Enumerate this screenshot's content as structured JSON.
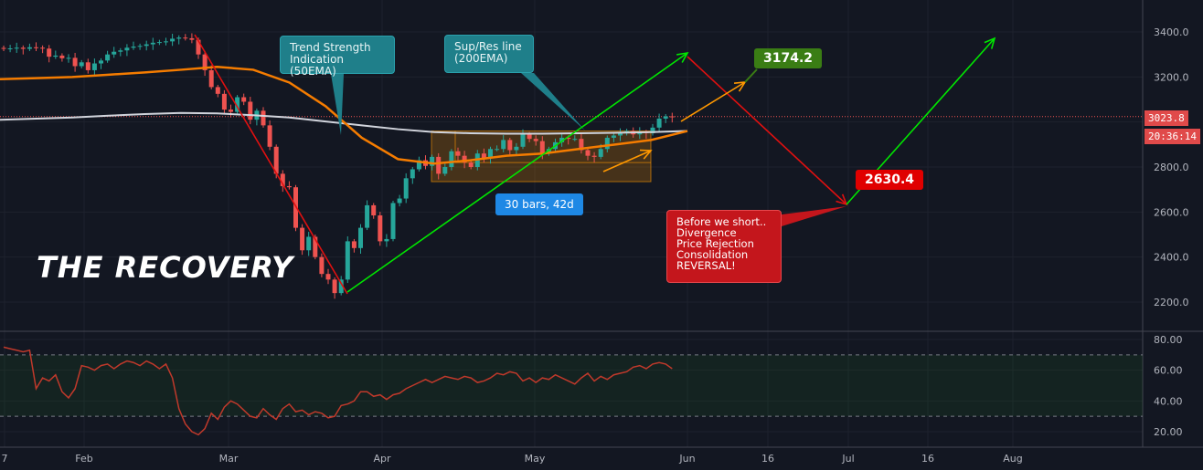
{
  "title_overlay": "THE RECOVERY",
  "annotations": {
    "trend_strength": "Trend Strength\nIndication (50EMA)",
    "sup_res": "Sup/Res line\n(200EMA)",
    "bars_range": "30 bars, 42d",
    "target_up": "3174.2",
    "target_down": "2630.4",
    "short_note": "Before we short..\nDivergence\nPrice Rejection\nConsolidation\nREVERSAL!"
  },
  "axis_tags": {
    "last_price": "3023.8",
    "countdown": "20:36:14"
  },
  "colors": {
    "up": "#26a69a",
    "down": "#ef5350",
    "ema50": "#f57c00",
    "ema200": "#d1d4dc",
    "rsi": "#c0392b",
    "green_arrow": "#00e600",
    "red_arrow": "#e01010",
    "orange_arrow": "#ff9800"
  },
  "chart_data": [
    {
      "type": "candlestick",
      "price_axis_ticks": [
        "3400.0",
        "3200.0",
        "3000.0",
        "2800.0",
        "2600.0",
        "2400.0",
        "2200.0"
      ],
      "price_axis_values": [
        3400,
        3200,
        3000,
        2800,
        2600,
        2400,
        2200
      ],
      "time_axis_ticks": [
        "7",
        "Feb",
        "Mar",
        "Apr",
        "May",
        "Jun",
        "16",
        "Jul",
        "16",
        "Aug"
      ],
      "ylim": [
        2120,
        3520
      ],
      "close_series": [
        3325,
        3327,
        3330,
        3325,
        3332,
        3330,
        3326,
        3290,
        3295,
        3283,
        3285,
        3248,
        3265,
        3230,
        3260,
        3273,
        3300,
        3312,
        3318,
        3330,
        3335,
        3338,
        3345,
        3352,
        3355,
        3358,
        3370,
        3375,
        3372,
        3365,
        3300,
        3230,
        3155,
        3125,
        3055,
        3045,
        3110,
        3090,
        3010,
        3050,
        2985,
        2890,
        2770,
        2715,
        2710,
        2530,
        2430,
        2490,
        2400,
        2325,
        2300,
        2240,
        2300,
        2470,
        2440,
        2530,
        2630,
        2585,
        2470,
        2480,
        2640,
        2660,
        2750,
        2790,
        2830,
        2805,
        2845,
        2770,
        2800,
        2870,
        2850,
        2820,
        2800,
        2860,
        2840,
        2880,
        2880,
        2920,
        2875,
        2890,
        2945,
        2925,
        2915,
        2860,
        2880,
        2910,
        2930,
        2925,
        2925,
        2875,
        2850,
        2845,
        2880,
        2930,
        2940,
        2950,
        2960,
        2945,
        2955,
        2950,
        2975,
        3015,
        3025,
        3023
      ],
      "ema50": [
        3190,
        3195,
        3200,
        3210,
        3220,
        3232,
        3245,
        3232,
        3175,
        3070,
        2930,
        2835,
        2815,
        2830,
        2850,
        2860,
        2880,
        2900,
        2920,
        2960
      ],
      "ema200": [
        3010,
        3015,
        3020,
        3028,
        3035,
        3040,
        3038,
        3030,
        3020,
        3002,
        2985,
        2968,
        2955,
        2950,
        2948,
        2948,
        2950,
        2952,
        2955,
        2960
      ],
      "rsi_axis_ticks": [
        "80.00",
        "60.00",
        "40.00",
        "20.00"
      ],
      "rsi_axis_values": [
        80,
        60,
        40,
        20
      ],
      "rsi_bounds": [
        70,
        30
      ],
      "rsi": [
        75,
        74,
        73,
        72,
        73,
        48,
        55,
        53,
        57,
        46,
        42,
        48,
        63,
        62,
        60,
        63,
        64,
        61,
        64,
        66,
        65,
        63,
        66,
        64,
        61,
        64,
        55,
        35,
        25,
        20,
        18,
        22,
        32,
        28,
        36,
        40,
        38,
        34,
        30,
        29,
        35,
        31,
        28,
        35,
        38,
        33,
        34,
        31,
        33,
        32,
        29,
        30,
        37,
        38,
        40,
        46,
        46,
        43,
        44,
        41,
        44,
        45,
        48,
        50,
        52,
        54,
        52,
        54,
        56,
        55,
        54,
        56,
        55,
        52,
        53,
        55,
        58,
        57,
        59,
        58,
        53,
        55,
        52,
        55,
        54,
        57,
        55,
        53,
        51,
        55,
        58,
        53,
        56,
        54,
        57,
        58,
        59,
        62,
        63,
        61,
        64,
        65,
        64,
        61
      ]
    }
  ]
}
